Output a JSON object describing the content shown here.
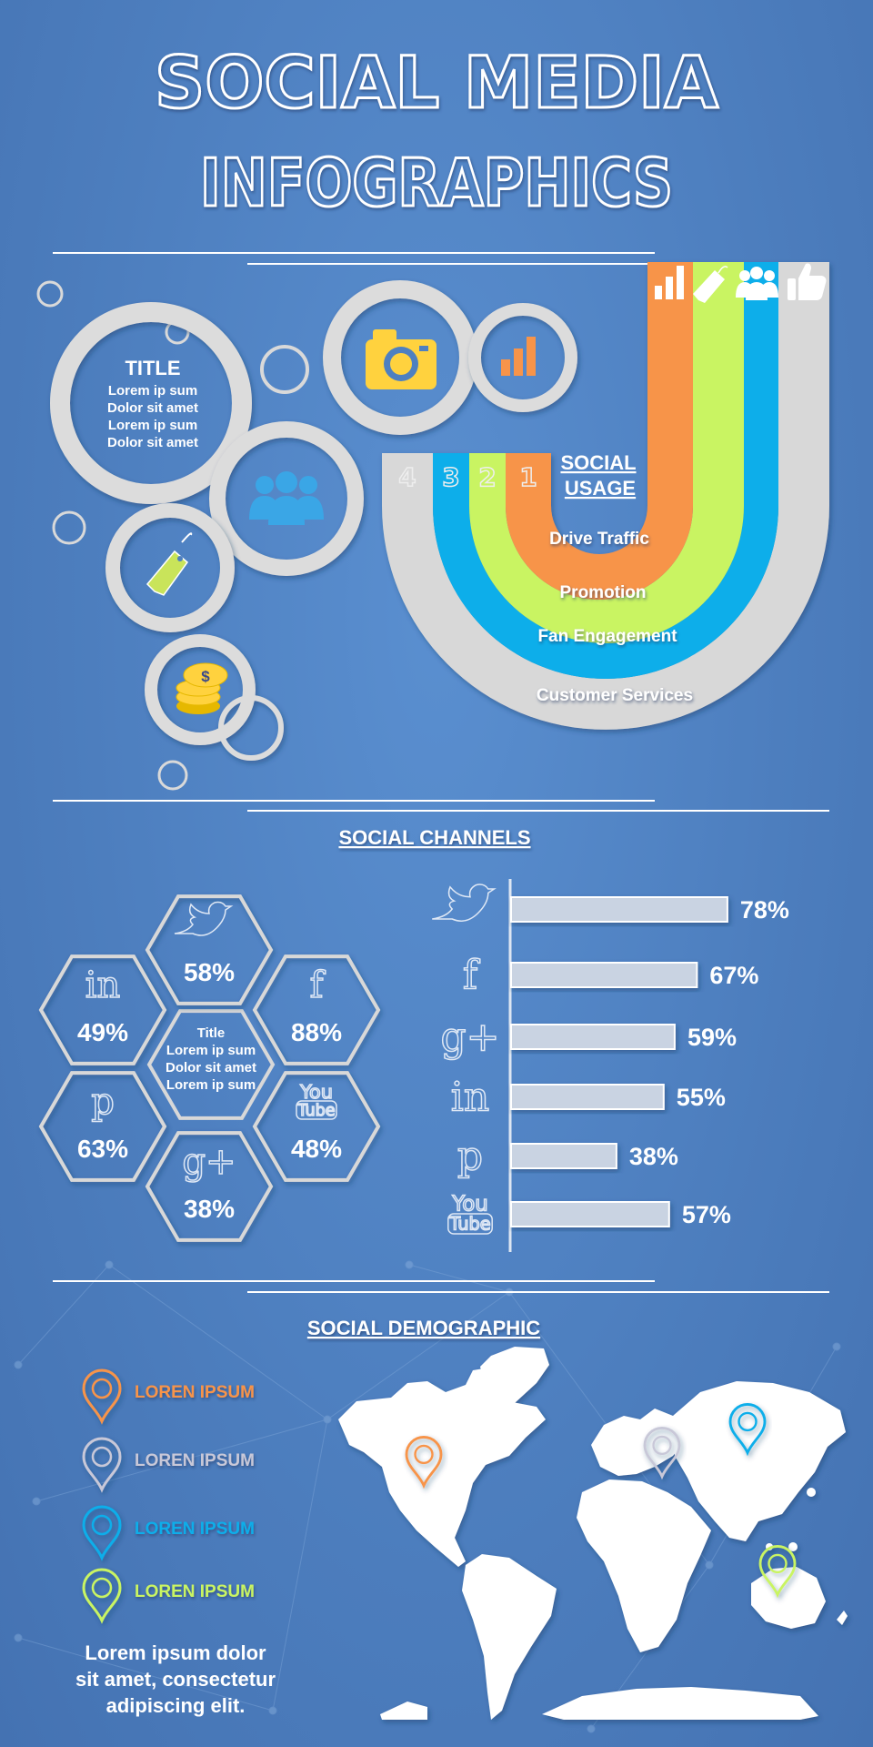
{
  "header": {
    "line1": "SOCIAL MEDIA",
    "line2": "INFOGRAPHICS"
  },
  "circles": {
    "title": "TITLE",
    "body": [
      "Lorem ip sum",
      "Dolor sit amet",
      "Lorem ip sum",
      "Dolor sit amet"
    ],
    "icons": [
      "camera-icon",
      "bar-chart-icon",
      "people-icon",
      "price-tag-icon",
      "coins-icon"
    ],
    "coin_symbol": "$"
  },
  "usage": {
    "title_line1": "SOCIAL",
    "title_line2": "USAGE",
    "numbers": [
      "4",
      "3",
      "2",
      "1"
    ],
    "bands": [
      "Drive Traffic",
      "Promotion",
      "Fan Engagement",
      "Customer Services"
    ],
    "colors": {
      "orange": "#f7944a",
      "green": "#c9f462",
      "blue": "#0aaeea",
      "grey": "#d8d8d8"
    }
  },
  "channels": {
    "heading": "SOCIAL CHANNELS",
    "center": [
      "Title",
      "Lorem ip sum",
      "Dolor sit amet",
      "Lorem ip sum"
    ],
    "hexes": [
      {
        "icon": "twitter-icon",
        "value": "58%"
      },
      {
        "icon": "linkedin-icon",
        "value": "49%"
      },
      {
        "icon": "facebook-icon",
        "value": "88%"
      },
      {
        "icon": "pinterest-icon",
        "value": "63%"
      },
      {
        "icon": "youtube-icon",
        "value": "48%"
      },
      {
        "icon": "googleplus-icon",
        "value": "38%"
      }
    ]
  },
  "chart_data": {
    "type": "bar",
    "orientation": "horizontal",
    "categories": [
      "Twitter",
      "Facebook",
      "Google+",
      "LinkedIn",
      "Pinterest",
      "YouTube"
    ],
    "category_icons": [
      "twitter-icon",
      "facebook-icon",
      "googleplus-icon",
      "linkedin-icon",
      "pinterest-icon",
      "youtube-icon"
    ],
    "values": [
      78,
      67,
      59,
      55,
      38,
      57
    ],
    "labels": [
      "78%",
      "67%",
      "59%",
      "55%",
      "38%",
      "57%"
    ],
    "xlim": [
      0,
      100
    ],
    "title": "",
    "xlabel": "",
    "ylabel": ""
  },
  "demographic": {
    "heading": "SOCIAL DEMOGRAPHIC",
    "legend": [
      {
        "label": "LOREN IPSUM",
        "color": "#f7944a"
      },
      {
        "label": "LOREN IPSUM",
        "color": "#c8c8d8"
      },
      {
        "label": "LOREN IPSUM",
        "color": "#0aaeea"
      },
      {
        "label": "LOREN IPSUM",
        "color": "#c9f462"
      }
    ],
    "caption": [
      "Lorem ipsum dolor",
      "sit amet, consectetur",
      "adipiscing elit."
    ]
  }
}
